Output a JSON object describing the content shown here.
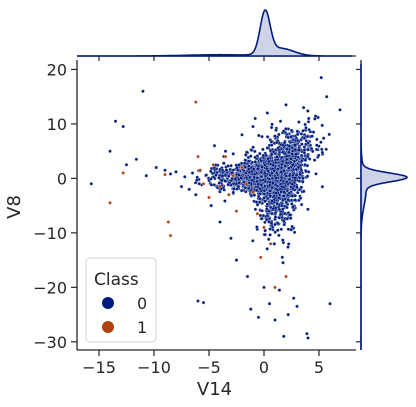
{
  "chart_data": {
    "type": "scatter",
    "xlabel": "V14",
    "ylabel": "V8",
    "xlim": [
      -17,
      8
    ],
    "ylim": [
      -31.5,
      21
    ],
    "xticks": [
      -15,
      -10,
      -5,
      0,
      5
    ],
    "xtick_labels": [
      "−15",
      "−10",
      "−5",
      "0",
      "5"
    ],
    "yticks": [
      -30,
      -20,
      -10,
      0,
      10,
      20
    ],
    "ytick_labels": [
      "−30",
      "−20",
      "−10",
      "0",
      "10",
      "20"
    ],
    "legend": {
      "title": "Class",
      "position": "lower-left",
      "entries": [
        {
          "label": "0",
          "color": "#001c7f"
        },
        {
          "label": "1",
          "color": "#b1400d"
        }
      ]
    },
    "marginals": {
      "top": "kde of V14",
      "right": "kde of V8"
    },
    "series": [
      {
        "name": "0",
        "color": "#001c7f",
        "outliers": [
          [
            -15.7,
            -1.0
          ],
          [
            -14.0,
            5.0
          ],
          [
            -13.5,
            10.5
          ],
          [
            -12.8,
            9.5
          ],
          [
            -12.5,
            2.5
          ],
          [
            -11.6,
            3.5
          ],
          [
            -11.0,
            16.0
          ],
          [
            -10.7,
            0.5
          ],
          [
            -9.8,
            2.0
          ],
          [
            -9.0,
            1.5
          ],
          [
            -8.5,
            0.8
          ],
          [
            -8.0,
            1.2
          ],
          [
            -7.5,
            -1.5
          ],
          [
            -7.2,
            0.3
          ],
          [
            -6.8,
            -2.0
          ],
          [
            -6.5,
            1.0
          ],
          [
            -6.2,
            -3.0
          ],
          [
            -6.0,
            -22.5
          ],
          [
            -5.5,
            -22.8
          ],
          [
            -4.8,
            -5.0
          ],
          [
            -4.5,
            6.0
          ],
          [
            -4.0,
            -8.0
          ],
          [
            -3.5,
            5.0
          ],
          [
            -3.0,
            -11.0
          ],
          [
            -2.8,
            4.5
          ],
          [
            -2.5,
            -15.0
          ],
          [
            -2.0,
            8.0
          ],
          [
            -1.5,
            -18.0
          ],
          [
            -1.2,
            -24.0
          ],
          [
            -0.8,
            11.0
          ],
          [
            -0.5,
            -25.5
          ],
          [
            0.0,
            -20.0
          ],
          [
            0.3,
            12.0
          ],
          [
            0.5,
            -23.0
          ],
          [
            1.0,
            -26.0
          ],
          [
            1.4,
            -20.5
          ],
          [
            1.8,
            -29.0
          ],
          [
            2.2,
            -25.0
          ],
          [
            2.7,
            -22.0
          ],
          [
            3.0,
            -23.5
          ],
          [
            3.6,
            13.0
          ],
          [
            3.9,
            -28.5
          ],
          [
            4.0,
            -29.3
          ],
          [
            4.5,
            8.5
          ],
          [
            5.2,
            18.5
          ],
          [
            5.7,
            15.0
          ],
          [
            6.0,
            -23.0
          ],
          [
            2.0,
            13.5
          ],
          [
            -1.0,
            9.5
          ],
          [
            1.5,
            10.5
          ]
        ]
      },
      {
        "name": "1",
        "color": "#b1400d",
        "outliers": [
          [
            -14.0,
            -4.5
          ],
          [
            -12.8,
            1.0
          ],
          [
            -9.0,
            0.7
          ],
          [
            -8.7,
            -8.0
          ],
          [
            -8.5,
            -10.5
          ],
          [
            -6.2,
            14.0
          ],
          [
            -6.0,
            4.0
          ],
          [
            -5.8,
            1.5
          ],
          [
            -5.5,
            -1.0
          ],
          [
            -5.0,
            -3.5
          ],
          [
            -4.6,
            2.5
          ],
          [
            -4.0,
            -1.5
          ],
          [
            -3.5,
            4.0
          ],
          [
            -3.2,
            -3.0
          ],
          [
            -2.8,
            0.5
          ],
          [
            -2.5,
            -6.0
          ],
          [
            -2.0,
            2.0
          ],
          [
            -1.6,
            -1.0
          ],
          [
            -1.0,
            -2.5
          ],
          [
            -0.6,
            -6.5
          ],
          [
            0.0,
            -9.0
          ],
          [
            0.6,
            -12.0
          ],
          [
            -0.3,
            -14.5
          ],
          [
            1.0,
            -20.0
          ],
          [
            2.0,
            -18.0
          ]
        ]
      }
    ]
  }
}
